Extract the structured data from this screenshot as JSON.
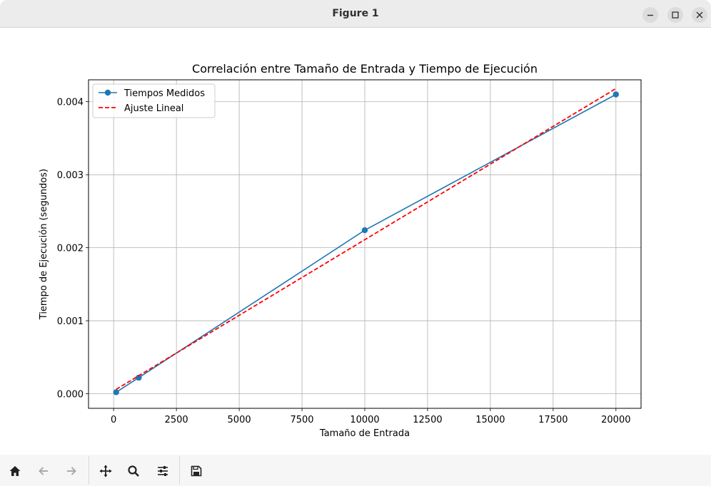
{
  "window": {
    "title": "Figure 1"
  },
  "window_controls": [
    {
      "name": "minimize-button",
      "icon": "minimize-icon"
    },
    {
      "name": "maximize-button",
      "icon": "maximize-icon"
    },
    {
      "name": "close-button",
      "icon": "close-icon"
    }
  ],
  "toolbar": {
    "buttons": [
      {
        "name": "home-button",
        "icon": "home-icon"
      },
      {
        "name": "back-button",
        "icon": "arrow-left-icon"
      },
      {
        "name": "forward-button",
        "icon": "arrow-right-icon"
      },
      {
        "name": "pan-button",
        "icon": "move-icon"
      },
      {
        "name": "zoom-button",
        "icon": "search-icon"
      },
      {
        "name": "configure-subplots-button",
        "icon": "sliders-icon"
      },
      {
        "name": "save-button",
        "icon": "save-icon"
      }
    ]
  },
  "chart_data": {
    "type": "line",
    "title": "Correlación entre Tamaño de Entrada y Tiempo de Ejecución",
    "xlabel": "Tamaño de Entrada",
    "ylabel": "Tiempo de Ejecución (segundos)",
    "xlim": [
      -1000,
      21000
    ],
    "ylim": [
      -0.0002,
      0.0043
    ],
    "xticks": [
      0,
      2500,
      5000,
      7500,
      10000,
      12500,
      15000,
      17500,
      20000
    ],
    "xtick_labels": [
      "0",
      "2500",
      "5000",
      "7500",
      "10000",
      "12500",
      "15000",
      "17500",
      "20000"
    ],
    "yticks": [
      0,
      0.001,
      0.002,
      0.003,
      0.004
    ],
    "ytick_labels": [
      "0.000",
      "0.001",
      "0.002",
      "0.003",
      "0.004"
    ],
    "grid": true,
    "legend_position": "upper-left",
    "series": [
      {
        "name": "Tiempos Medidos",
        "style": "solid-line-with-circle-markers",
        "color": "#1f77b4",
        "x": [
          100,
          1000,
          10000,
          20000
        ],
        "y": [
          2e-05,
          0.00022,
          0.00224,
          0.0041
        ]
      },
      {
        "name": "Ajuste Lineal",
        "style": "dashed-line",
        "color": "#ff0000",
        "x": [
          100,
          20000
        ],
        "y": [
          6e-05,
          0.00418
        ]
      }
    ]
  }
}
